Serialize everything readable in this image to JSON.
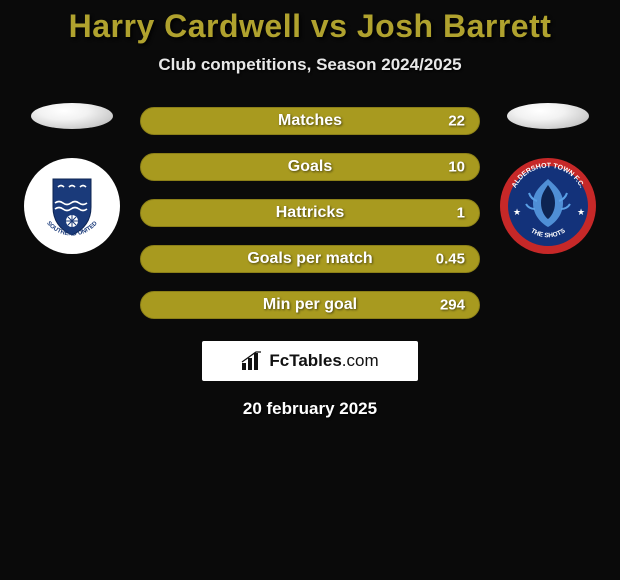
{
  "title": {
    "player1": "Harry Cardwell",
    "vs": "vs",
    "player2": "Josh Barrett",
    "color": "#b0a22e"
  },
  "subtitle": "Club competitions, Season 2024/2025",
  "bars": {
    "bg_color": "#a89a1f",
    "border_color": "#8c8018",
    "items": [
      {
        "label": "Matches",
        "value": "22"
      },
      {
        "label": "Goals",
        "value": "10"
      },
      {
        "label": "Hattricks",
        "value": "1"
      },
      {
        "label": "Goals per match",
        "value": "0.45"
      },
      {
        "label": "Min per goal",
        "value": "294"
      }
    ]
  },
  "left_crest": {
    "bg": "#ffffff",
    "shield_fill": "#1a3a7a",
    "text": "SOUTHEND UNITED"
  },
  "right_crest": {
    "bg": "#13327a",
    "ring_fill": "#c62828",
    "text_top": "ALDERSHOT TOWN",
    "text_bottom": "THE SHOTS"
  },
  "brand": {
    "name": "FcTables",
    "suffix": ".com"
  },
  "date": "20 february 2025"
}
